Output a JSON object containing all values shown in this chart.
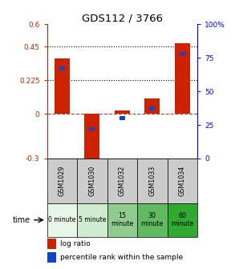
{
  "title": "GDS112 / 3766",
  "samples": [
    "GSM1029",
    "GSM1030",
    "GSM1032",
    "GSM1033",
    "GSM1034"
  ],
  "time_labels": [
    "0 minute",
    "5 minute",
    "15\nminute",
    "30\nminute",
    "60\nminute"
  ],
  "log_ratio": [
    0.37,
    -0.335,
    0.02,
    0.1,
    0.47
  ],
  "percentile_rank": [
    67,
    22,
    30,
    37,
    78
  ],
  "ylim_left": [
    -0.3,
    0.6
  ],
  "ylim_right": [
    0,
    100
  ],
  "yticks_left": [
    -0.3,
    0,
    0.225,
    0.45,
    0.6
  ],
  "ytick_labels_left": [
    "-0.3",
    "0",
    "0.225",
    "0.45",
    "0.6"
  ],
  "yticks_right": [
    0,
    25,
    50,
    75,
    100
  ],
  "ytick_labels_right": [
    "0",
    "25",
    "50",
    "75",
    "100%"
  ],
  "hlines_dotted": [
    0.225,
    0.45
  ],
  "bar_color_red": "#cc2200",
  "bar_color_blue": "#1144cc",
  "zero_line_color": "#cc3333",
  "sample_bg_color": "#cccccc",
  "time_colors": [
    "#e8f5e8",
    "#d0ecd0",
    "#90cc90",
    "#60bb60",
    "#30aa30"
  ],
  "bar_width": 0.5,
  "blue_marker_size": 0.12
}
